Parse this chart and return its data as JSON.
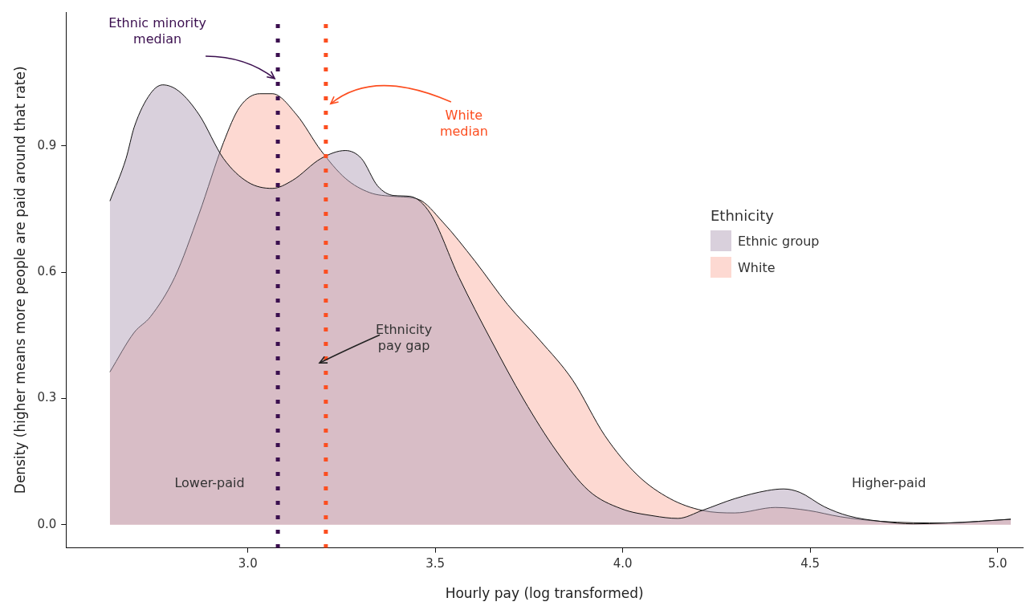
{
  "chart_data": {
    "type": "area",
    "xlabel": "Hourly pay (log transformed)",
    "ylabel": "Density (higher means more people are paid around that rate)",
    "legend_title": "Ethnicity",
    "legend": "right",
    "grid": false,
    "marker": "none",
    "xlim": [
      2.515,
      5.067
    ],
    "ylim": [
      -0.055,
      1.218
    ],
    "xticks": [
      {
        "value": 3,
        "label": "3.0"
      },
      {
        "value": 3.5,
        "label": "3.5"
      },
      {
        "value": 4,
        "label": "4.0"
      },
      {
        "value": 4.5,
        "label": "4.5"
      },
      {
        "value": 5,
        "label": "5.0"
      }
    ],
    "yticks": [
      {
        "value": 0,
        "label": "0.0"
      },
      {
        "value": 0.3,
        "label": "0.3"
      },
      {
        "value": 0.6,
        "label": "0.6"
      },
      {
        "value": 0.9,
        "label": "0.9"
      }
    ],
    "series": [
      {
        "name": "Ethnic group",
        "color": "#d9d0dc",
        "x": [
          2.632,
          2.675,
          2.697,
          2.74,
          2.773,
          2.816,
          2.87,
          2.935,
          3.0,
          3.065,
          3.119,
          3.195,
          3.26,
          3.303,
          3.346,
          3.39,
          3.433,
          3.487,
          3.563,
          3.649,
          3.736,
          3.823,
          3.909,
          3.996,
          4.082,
          4.147,
          4.212,
          4.299,
          4.385,
          4.429,
          4.472,
          4.537,
          4.602,
          4.688,
          4.775,
          4.861,
          4.948,
          5.035
        ],
        "values": [
          0.769,
          0.87,
          0.945,
          1.024,
          1.045,
          1.03,
          0.974,
          0.87,
          0.814,
          0.799,
          0.818,
          0.87,
          0.889,
          0.87,
          0.805,
          0.782,
          0.78,
          0.739,
          0.588,
          0.438,
          0.297,
          0.175,
          0.081,
          0.038,
          0.021,
          0.015,
          0.034,
          0.062,
          0.081,
          0.085,
          0.077,
          0.043,
          0.021,
          0.008,
          0.002,
          0.004,
          0.008,
          0.013
        ]
      },
      {
        "name": "White",
        "color": "#fdd9d2",
        "x": [
          2.632,
          2.697,
          2.74,
          2.805,
          2.87,
          2.935,
          2.978,
          3.032,
          3.065,
          3.13,
          3.195,
          3.26,
          3.325,
          3.39,
          3.455,
          3.519,
          3.606,
          3.693,
          3.779,
          3.866,
          3.952,
          4.039,
          4.126,
          4.212,
          4.299,
          4.407,
          4.494,
          4.58,
          4.688,
          4.861,
          5.035
        ],
        "values": [
          0.363,
          0.457,
          0.494,
          0.588,
          0.739,
          0.908,
          0.992,
          1.024,
          1.024,
          0.974,
          0.889,
          0.823,
          0.789,
          0.78,
          0.773,
          0.72,
          0.626,
          0.523,
          0.438,
          0.344,
          0.212,
          0.118,
          0.062,
          0.034,
          0.028,
          0.041,
          0.034,
          0.019,
          0.008,
          0.004,
          0.013
        ]
      }
    ],
    "ref_lines": [
      {
        "axis": "x",
        "value": 3.08,
        "label": "Ethnic minority\nmedian",
        "color": "#3b0f4f",
        "line_style": "dotted"
      },
      {
        "axis": "x",
        "value": 3.208,
        "label": "White\nmedian",
        "color": "#fc4e20",
        "line_style": "dotted"
      }
    ],
    "annotations": [
      "Ethnicity\npay gap",
      "Lower-paid",
      "Higher-paid"
    ]
  }
}
